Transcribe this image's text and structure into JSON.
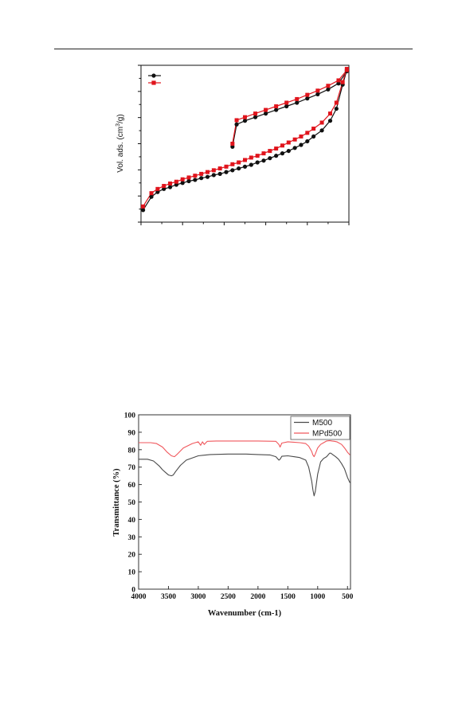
{
  "chart_data": [
    {
      "type": "line",
      "ylabel": "Vol. ads. (cm³/g)",
      "xlim": [
        0,
        1
      ],
      "ylim": [
        0,
        260
      ],
      "colors": {
        "sample_1": "#111111",
        "sample_2": "#e0141c"
      },
      "series": [
        {
          "color": "#111111",
          "marker": "circle",
          "adsorption": {
            "x": [
              0.01,
              0.05,
              0.08,
              0.11,
              0.14,
              0.17,
              0.2,
              0.23,
              0.26,
              0.29,
              0.32,
              0.35,
              0.38,
              0.41,
              0.44,
              0.47,
              0.5,
              0.53,
              0.56,
              0.59,
              0.62,
              0.65,
              0.68,
              0.71,
              0.74,
              0.77,
              0.8,
              0.83,
              0.87,
              0.91,
              0.94,
              0.97,
              0.99
            ],
            "y": [
              20,
              42,
              50,
              55,
              58,
              62,
              65,
              68,
              70,
              73,
              75,
              78,
              80,
              83,
              86,
              89,
              92,
              95,
              99,
              102,
              106,
              110,
              114,
              118,
              123,
              128,
              134,
              142,
              152,
              168,
              188,
              228,
              252
            ]
          },
          "desorption": {
            "x": [
              0.99,
              0.95,
              0.9,
              0.85,
              0.8,
              0.75,
              0.7,
              0.65,
              0.6,
              0.55,
              0.5,
              0.46,
              0.44
            ],
            "y": [
              250,
              230,
              220,
              212,
              205,
              198,
              192,
              186,
              180,
              174,
              168,
              162,
              125
            ]
          }
        },
        {
          "color": "#e0141c",
          "marker": "square",
          "adsorption": {
            "x": [
              0.01,
              0.05,
              0.08,
              0.11,
              0.14,
              0.17,
              0.2,
              0.23,
              0.26,
              0.29,
              0.32,
              0.35,
              0.38,
              0.41,
              0.44,
              0.47,
              0.5,
              0.53,
              0.56,
              0.59,
              0.62,
              0.65,
              0.68,
              0.71,
              0.74,
              0.77,
              0.8,
              0.83,
              0.87,
              0.91,
              0.94,
              0.97,
              0.99
            ],
            "y": [
              26,
              48,
              55,
              60,
              64,
              67,
              71,
              74,
              77,
              80,
              83,
              86,
              89,
              92,
              96,
              99,
              103,
              107,
              110,
              114,
              118,
              122,
              127,
              132,
              137,
              142,
              148,
              155,
              165,
              180,
              198,
              232,
              254
            ]
          },
          "desorption": {
            "x": [
              0.99,
              0.95,
              0.9,
              0.85,
              0.8,
              0.75,
              0.7,
              0.65,
              0.6,
              0.55,
              0.5,
              0.46,
              0.44
            ],
            "y": [
              252,
              235,
              226,
              218,
              211,
              204,
              198,
              192,
              186,
              180,
              174,
              169,
              130
            ]
          }
        }
      ]
    },
    {
      "type": "line",
      "xlabel": "Wavenumber (cm-1)",
      "ylabel": "Transmittance (%)",
      "xlim": [
        4000,
        450
      ],
      "ylim": [
        0,
        100
      ],
      "x_ticks": [
        4000,
        3500,
        3000,
        2500,
        2000,
        1500,
        1000,
        500
      ],
      "y_ticks": [
        0,
        10,
        20,
        30,
        40,
        50,
        60,
        70,
        80,
        90,
        100
      ],
      "legend_position": "top-right",
      "series": [
        {
          "name": "M500",
          "color": "#4a4a4a",
          "x": [
            4000,
            3850,
            3750,
            3650,
            3600,
            3550,
            3500,
            3450,
            3420,
            3380,
            3300,
            3200,
            3000,
            2800,
            2500,
            2200,
            2000,
            1800,
            1700,
            1650,
            1630,
            1600,
            1500,
            1400,
            1300,
            1200,
            1150,
            1100,
            1080,
            1060,
            1040,
            1000,
            950,
            900,
            850,
            800,
            780,
            740,
            700,
            650,
            600,
            550,
            500,
            460
          ],
          "y": [
            74.5,
            74.5,
            73.5,
            70.5,
            68.5,
            67,
            65.5,
            65,
            65.5,
            67.5,
            71,
            74,
            76.5,
            77.2,
            77.5,
            77.5,
            77.2,
            77,
            76,
            74,
            74.5,
            76.2,
            76.5,
            76,
            75.5,
            74,
            70,
            62,
            57,
            53.5,
            56,
            66,
            73,
            75,
            76,
            78,
            78,
            77,
            76,
            74.5,
            72,
            69,
            64,
            61
          ]
        },
        {
          "name": "MPd500",
          "color": "#f0575c",
          "x": [
            4000,
            3800,
            3700,
            3600,
            3520,
            3450,
            3400,
            3350,
            3250,
            3100,
            3000,
            2960,
            2930,
            2900,
            2850,
            2700,
            2500,
            2200,
            2000,
            1700,
            1650,
            1630,
            1600,
            1500,
            1400,
            1300,
            1200,
            1150,
            1100,
            1080,
            1060,
            1040,
            1000,
            950,
            900,
            850,
            800,
            760,
            720,
            680,
            600,
            550,
            500,
            460
          ],
          "y": [
            84,
            84,
            83.5,
            81.5,
            78.5,
            76.5,
            76,
            77.5,
            81,
            83.5,
            84.5,
            82.5,
            84.5,
            83,
            84.8,
            85,
            85,
            85,
            85,
            84.8,
            83,
            81.5,
            83.8,
            84.5,
            84.3,
            84,
            83.5,
            82,
            79,
            77,
            76,
            77.5,
            81,
            83,
            84,
            85,
            85.2,
            85,
            84.8,
            84.5,
            83,
            81,
            78.5,
            77
          ]
        }
      ]
    }
  ]
}
